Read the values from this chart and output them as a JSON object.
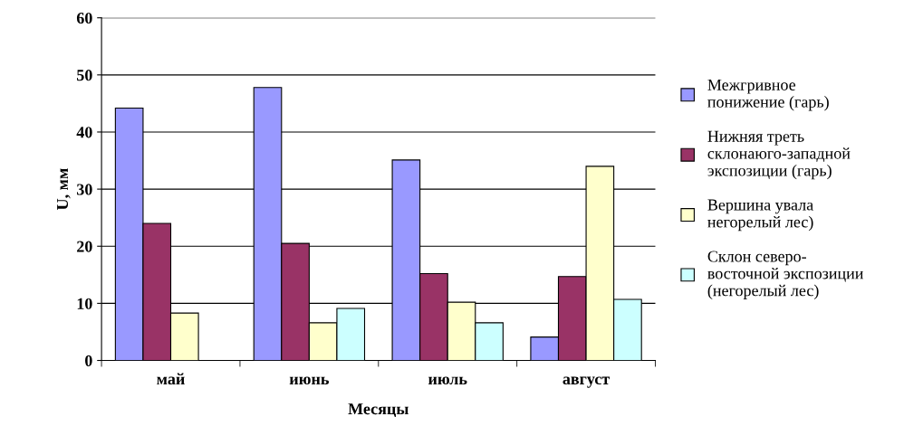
{
  "chart_data": {
    "type": "bar",
    "xlabel": "Месяцы",
    "ylabel": "U, мм",
    "categories": [
      "май",
      "июнь",
      "июль",
      "август"
    ],
    "series": [
      {
        "name": "Межгривное\nпонижение (гарь)",
        "color": "#9999ff",
        "values": [
          44.2,
          47.8,
          35.1,
          4.1
        ]
      },
      {
        "name": "Нижняя треть\nсклонаюго-западной\nэкспозиции (гарь)",
        "color": "#993366",
        "values": [
          24.0,
          20.5,
          15.2,
          14.7
        ]
      },
      {
        "name": "Вершина увала\nнегорелый лес)",
        "color": "#ffffcc",
        "values": [
          8.3,
          6.6,
          10.2,
          34.0
        ]
      },
      {
        "name": "Склон северо-\nвосточной экспозиции\n(негорелый лес)",
        "color": "#ccffff",
        "values": [
          null,
          9.1,
          6.6,
          10.7
        ]
      }
    ],
    "ylim": [
      0,
      60
    ],
    "yticks": [
      0,
      10,
      20,
      30,
      40,
      50,
      60
    ],
    "grid": "y",
    "legend": "right"
  }
}
